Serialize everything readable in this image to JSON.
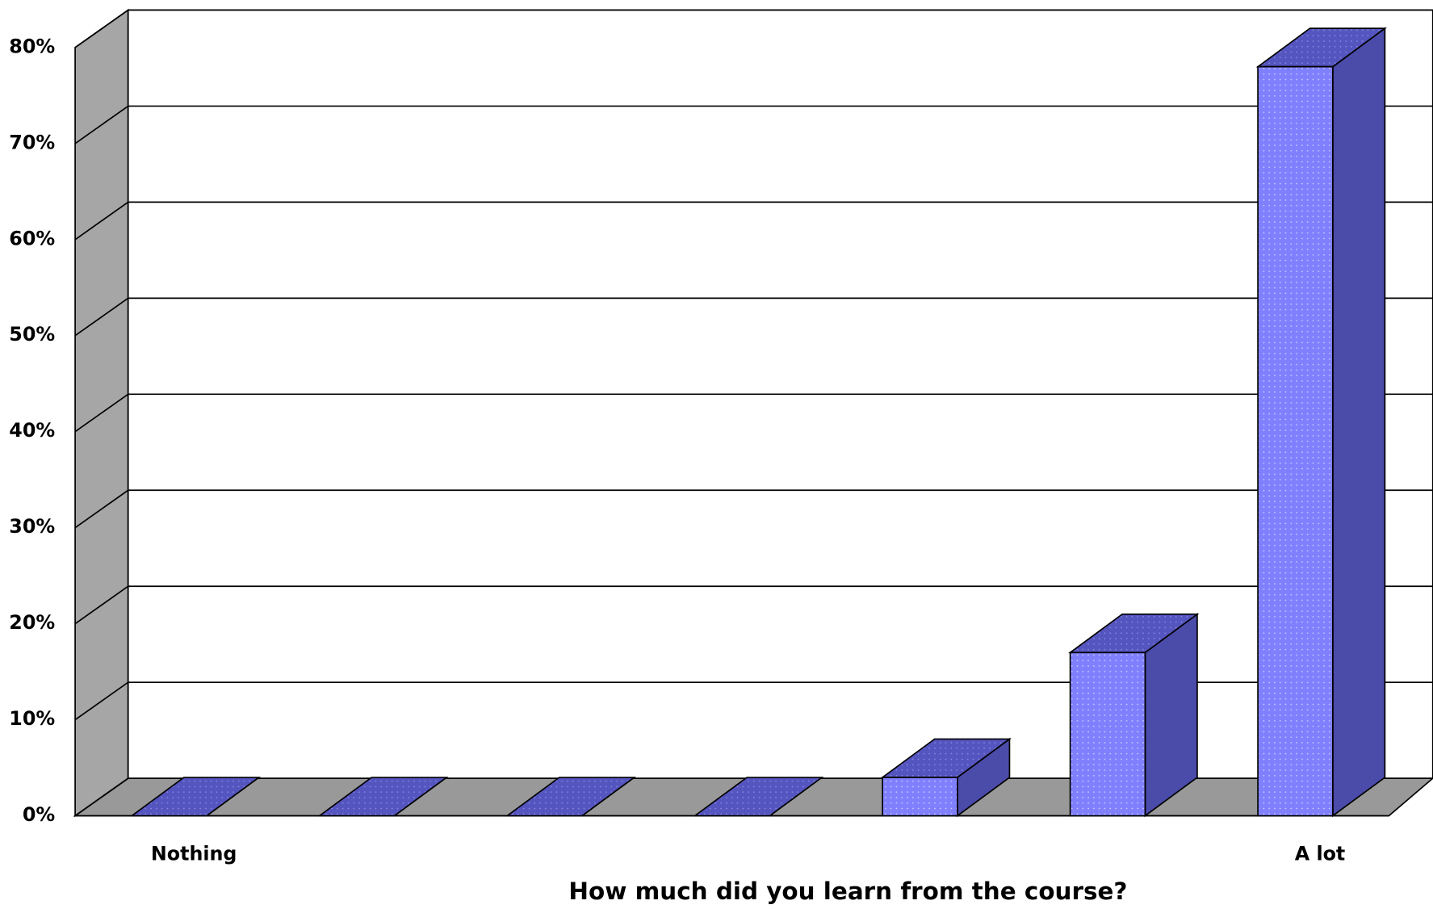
{
  "chart_data": {
    "type": "bar3d",
    "x_label": "How much did you learn from the course?",
    "categories": [
      "Nothing",
      null,
      null,
      null,
      null,
      null,
      "A lot"
    ],
    "values": [
      0,
      0,
      0,
      0,
      4,
      17,
      78
    ],
    "color": "#8080ff",
    "ylim": [
      0,
      80
    ],
    "yticks": [
      {
        "value": 0,
        "label": "0%"
      },
      {
        "value": 10,
        "label": "10%"
      },
      {
        "value": 20,
        "label": "20%"
      },
      {
        "value": 30,
        "label": "30%"
      },
      {
        "value": 40,
        "label": "40%"
      },
      {
        "value": 50,
        "label": "50%"
      },
      {
        "value": 60,
        "label": "60%"
      },
      {
        "value": 70,
        "label": "70%"
      },
      {
        "value": 80,
        "label": "80%"
      }
    ],
    "grid": true
  }
}
